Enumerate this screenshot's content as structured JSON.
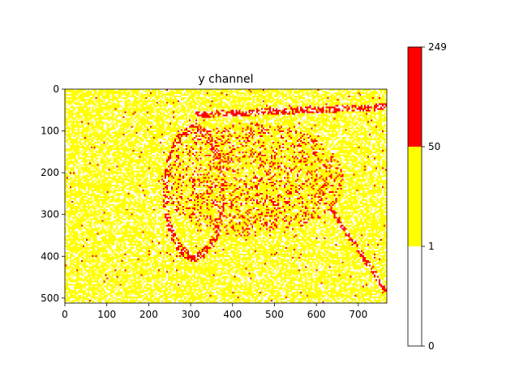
{
  "chart_data": {
    "type": "heatmap",
    "title": "y channel",
    "xlabel": "",
    "ylabel": "",
    "image_size": {
      "width": 768,
      "height": 512
    },
    "xlim": [
      0,
      768
    ],
    "ylim": [
      512,
      0
    ],
    "xticks": [
      0,
      100,
      200,
      300,
      400,
      500,
      600,
      700
    ],
    "yticks": [
      0,
      100,
      200,
      300,
      400,
      500
    ],
    "colorbar": {
      "boundaries": [
        0,
        1,
        50,
        249
      ],
      "colors": [
        "#ffffff",
        "#ffff00",
        "#ff0000"
      ],
      "tick_labels": [
        "0",
        "1",
        "50",
        "249"
      ]
    },
    "description_colors": {
      "background": "#ffffff",
      "low": "#ffffff",
      "mid": "#ffff00",
      "high": "#ff0000"
    },
    "grid": false
  }
}
